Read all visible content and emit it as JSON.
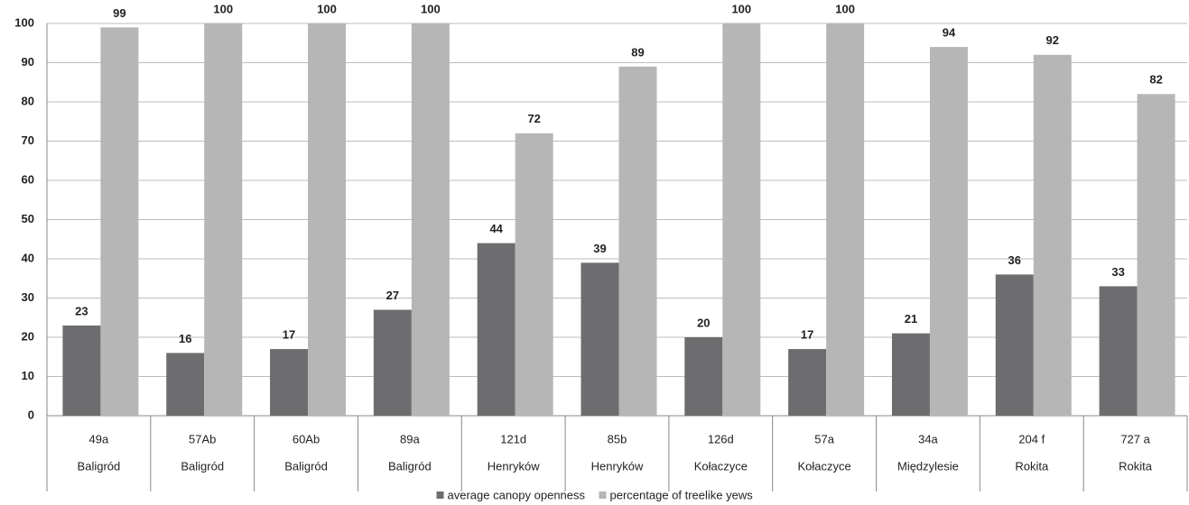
{
  "chart_data": {
    "type": "bar",
    "categories": [
      "49a",
      "57Ab",
      "60Ab",
      "89a",
      "121d",
      "85b",
      "126d",
      "57a",
      "34a",
      "204 f",
      "727 a"
    ],
    "category_groups": [
      "Baligród",
      "Baligród",
      "Baligród",
      "Baligród",
      "Henryków",
      "Henryków",
      "Kołaczyce",
      "Kołaczyce",
      "Międzylesie",
      "Rokita",
      "Rokita"
    ],
    "series": [
      {
        "name": "average canopy openness",
        "color": "#6d6d6f",
        "values": [
          23,
          16,
          17,
          27,
          44,
          39,
          20,
          17,
          21,
          36,
          33
        ]
      },
      {
        "name": "percentage of treelike yews",
        "color": "#b6b6b6",
        "values": [
          99,
          100,
          100,
          100,
          72,
          89,
          100,
          100,
          94,
          92,
          82
        ]
      }
    ],
    "ylim": [
      0,
      100
    ],
    "yticks": [
      0,
      10,
      20,
      30,
      40,
      50,
      60,
      70,
      80,
      90,
      100
    ],
    "grid": true,
    "legend": "bottom"
  }
}
